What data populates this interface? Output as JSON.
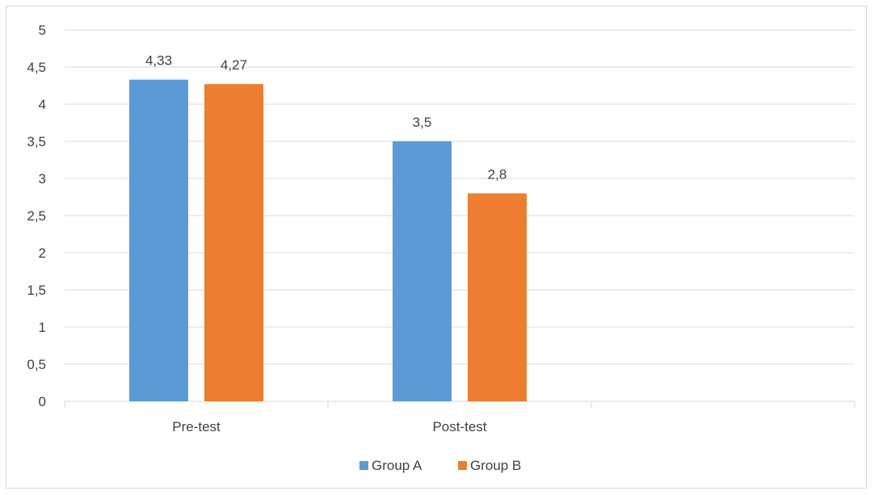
{
  "chart_data": {
    "type": "bar",
    "categories": [
      "Pre-test",
      "Post-test",
      ""
    ],
    "series": [
      {
        "name": "Group A",
        "values": [
          4.33,
          3.5,
          null
        ],
        "labels": [
          "4,33",
          "3,5",
          ""
        ],
        "color": "#5b9bd5"
      },
      {
        "name": "Group B",
        "values": [
          4.27,
          2.8,
          null
        ],
        "labels": [
          "4,27",
          "2,8",
          ""
        ],
        "color": "#ed7d31"
      }
    ],
    "yticks": [
      0,
      0.5,
      1,
      1.5,
      2,
      2.5,
      3,
      3.5,
      4,
      4.5,
      5
    ],
    "ytick_labels": [
      "0",
      "0,5",
      "1",
      "1,5",
      "2",
      "2,5",
      "3",
      "3,5",
      "4",
      "4,5",
      "5"
    ],
    "ylim": [
      0,
      5
    ],
    "grid": true,
    "legend": "bottom",
    "title": "",
    "xlabel": "",
    "ylabel": ""
  }
}
